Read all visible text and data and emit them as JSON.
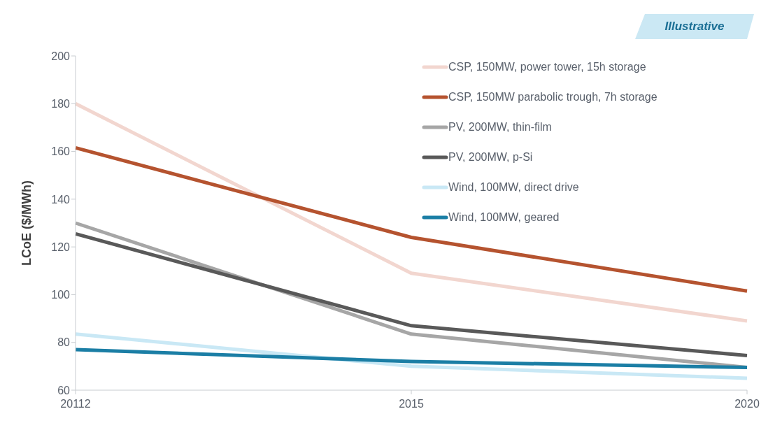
{
  "chart_data": {
    "type": "line",
    "ylabel": "LCoE ($/MWh)",
    "annotations": [
      "Illustrative"
    ],
    "categories": [
      "20112",
      "2015",
      "2020"
    ],
    "ylim": [
      60,
      200
    ],
    "yticks": [
      60,
      80,
      100,
      120,
      140,
      160,
      180,
      200
    ],
    "grid": false,
    "legend": "top right",
    "marker": "none",
    "line_style": "solid",
    "series": [
      {
        "name": "CSP, 150MW, power tower, 15h storage",
        "color": "#f2d6cf",
        "values": [
          180,
          109,
          89
        ]
      },
      {
        "name": "CSP, 150MW parabolic trough, 7h storage",
        "color": "#b5532f",
        "values": [
          161.5,
          124,
          101.5
        ]
      },
      {
        "name": "PV, 200MW, thin-film",
        "color": "#a6a6a6",
        "values": [
          130,
          83.5,
          69.5
        ]
      },
      {
        "name": "PV, 200MW, p-Si",
        "color": "#595959",
        "values": [
          125.5,
          87,
          74.5
        ]
      },
      {
        "name": "Wind, 100MW, direct drive",
        "color": "#c9e8f5",
        "values": [
          83.5,
          70,
          65
        ]
      },
      {
        "name": "Wind, 100MW, geared",
        "color": "#1b7ea5",
        "values": [
          77,
          72,
          69.5
        ]
      }
    ]
  }
}
